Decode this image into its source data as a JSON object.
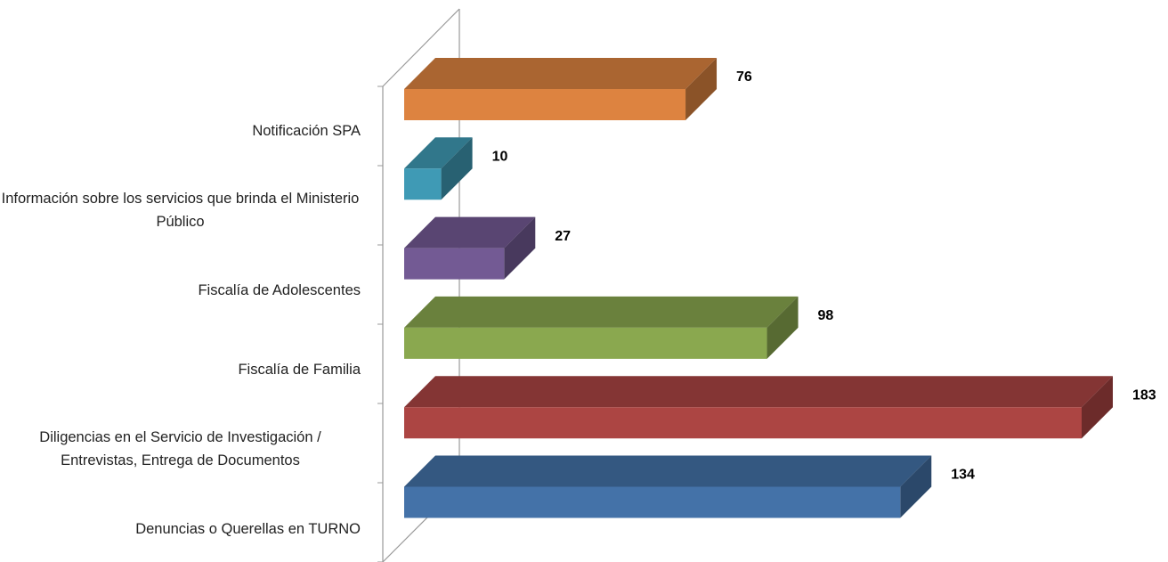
{
  "chart_data": {
    "type": "bar3d",
    "categories": [
      "Notificación SPA",
      "Información sobre los servicios que brinda el Ministerio Público",
      "Fiscalía de Adolescentes",
      "Fiscalía de Familia",
      "Diligencias en el Servicio de Investigación / Entrevistas, Entrega de Documentos",
      "Denuncias o Querellas en TURNO"
    ],
    "values": [
      76,
      10,
      27,
      98,
      183,
      134
    ],
    "colors": [
      "#dd8340",
      "#3f9ab5",
      "#735a94",
      "#8aa84f",
      "#ac4543",
      "#4472a8"
    ]
  }
}
